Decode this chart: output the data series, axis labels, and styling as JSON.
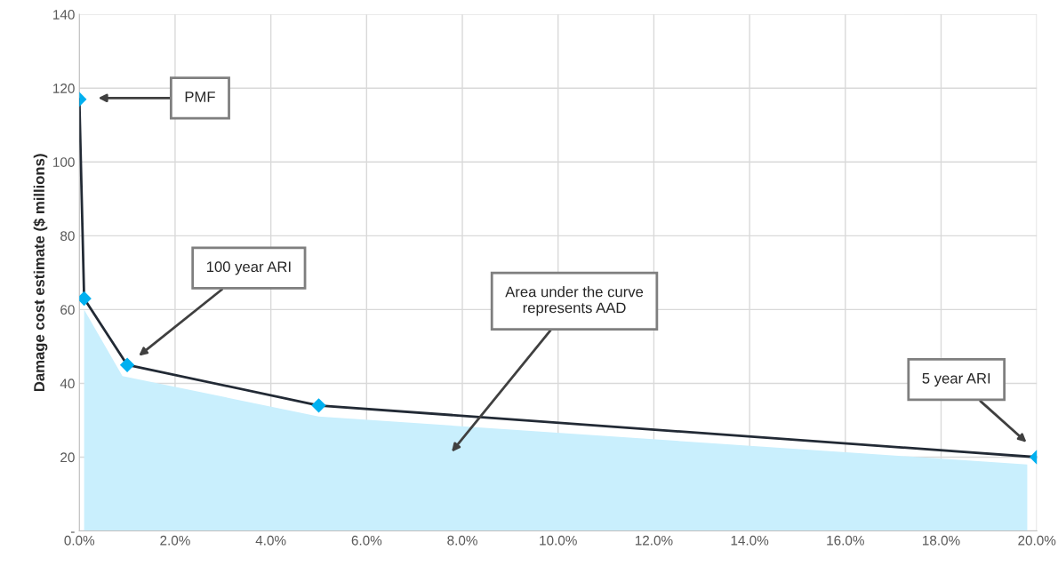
{
  "chart_data": {
    "type": "line",
    "ylabel": "Damage cost estimate ($ millions)",
    "xlim": [
      0,
      20
    ],
    "ylim": [
      0,
      140
    ],
    "xticks": [
      {
        "value": 0,
        "label": "0.0%"
      },
      {
        "value": 2,
        "label": "2.0%"
      },
      {
        "value": 4,
        "label": "4.0%"
      },
      {
        "value": 6,
        "label": "6.0%"
      },
      {
        "value": 8,
        "label": "8.0%"
      },
      {
        "value": 10,
        "label": "10.0%"
      },
      {
        "value": 12,
        "label": "12.0%"
      },
      {
        "value": 14,
        "label": "14.0%"
      },
      {
        "value": 16,
        "label": "16.0%"
      },
      {
        "value": 18,
        "label": "18.0%"
      },
      {
        "value": 20,
        "label": "20.0%"
      }
    ],
    "yticks": [
      {
        "value": 0,
        "label": "-"
      },
      20,
      40,
      60,
      80,
      100,
      120,
      140
    ],
    "grid": true,
    "series": [
      {
        "type": "area",
        "color": "#c9effd",
        "x": [
          0.1,
          0.9,
          5,
          19.8
        ],
        "values": [
          60,
          42,
          31,
          18
        ]
      },
      {
        "color": "#222a35",
        "marker": "diamond",
        "colors": [
          "#00b0f0",
          "#00b0f0",
          "#00b0f0",
          "#00b0f0",
          "#00b0f0"
        ],
        "line_style": "solid",
        "x": [
          0,
          0.1,
          1,
          5,
          20
        ],
        "values": [
          117,
          63,
          45,
          34,
          20
        ]
      }
    ],
    "annotations": [
      "PMF",
      "100 year ARI",
      "Area under the curve\nrepresents AAD",
      "5 year ARI"
    ]
  }
}
